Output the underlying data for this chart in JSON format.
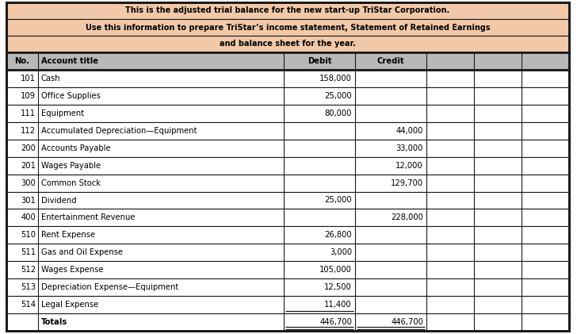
{
  "title_line1": "This is the adjusted trial balance for the new start-up TriStar Corporation.",
  "title_line2": "Use this information to prepare TriStar’s income statement, Statement of Retained Earnings",
  "title_line3": "and balance sheet for the year.",
  "header_bg": "#f2c9a8",
  "col_header_bg": "#b8b8b8",
  "col_header_text": [
    "No.",
    "Account title",
    "Debit",
    "Credit"
  ],
  "rows": [
    {
      "no": "101",
      "title": "Cash",
      "debit": "158,000",
      "credit": ""
    },
    {
      "no": "109",
      "title": "Office Supplies",
      "debit": "25,000",
      "credit": ""
    },
    {
      "no": "111",
      "title": "Equipment",
      "debit": "80,000",
      "credit": ""
    },
    {
      "no": "112",
      "title": "Accumulated Depreciation—Equipment",
      "debit": "",
      "credit": "44,000"
    },
    {
      "no": "200",
      "title": "Accounts Payable",
      "debit": "",
      "credit": "33,000"
    },
    {
      "no": "201",
      "title": "Wages Payable",
      "debit": "",
      "credit": "12,000"
    },
    {
      "no": "300",
      "title": "Common Stock",
      "debit": "",
      "credit": "129,700"
    },
    {
      "no": "301",
      "title": "Dividend",
      "debit": "25,000",
      "credit": ""
    },
    {
      "no": "400",
      "title": "Entertainment Revenue",
      "debit": "",
      "credit": "228,000"
    },
    {
      "no": "510",
      "title": "Rent Expense",
      "debit": "26,800",
      "credit": ""
    },
    {
      "no": "511",
      "title": "Gas and Oil Expense",
      "debit": "3,000",
      "credit": ""
    },
    {
      "no": "512",
      "title": "Wages Expense",
      "debit": "105,000",
      "credit": ""
    },
    {
      "no": "513",
      "title": "Depreciation Expense—Equipment",
      "debit": "12,500",
      "credit": ""
    },
    {
      "no": "514",
      "title": "Legal Expense",
      "debit": "11,400",
      "credit": ""
    },
    {
      "no": "",
      "title": "Totals",
      "debit": "446,700",
      "credit": "446,700"
    }
  ],
  "border_color": "#1a1a1a",
  "row_bg_white": "#ffffff",
  "text_color": "#000000",
  "figsize": [
    7.28,
    4.21
  ],
  "dpi": 100,
  "header_fontsize": 7.0,
  "table_fontsize": 7.2
}
